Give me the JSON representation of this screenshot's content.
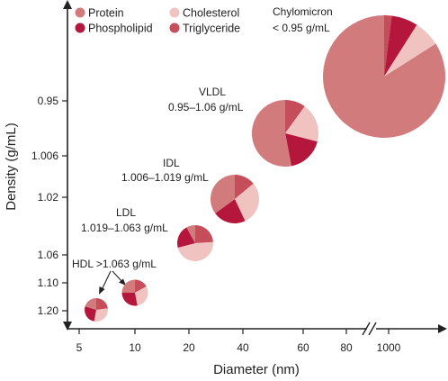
{
  "chart_data": {
    "type": "scatter",
    "subtype": "bubble-pie",
    "xlabel": "Diameter (nm)",
    "ylabel": "Density (g/mL)",
    "x_axis": {
      "scale": "log",
      "ticks": [
        "5",
        "10",
        "20",
        "40",
        "60",
        "80",
        "1000"
      ],
      "break_between": [
        "80",
        "1000"
      ]
    },
    "y_axis": {
      "direction": "increasing-density-downward",
      "ticks": [
        "0.95",
        "1.006",
        "1.02",
        "1.06",
        "1.10",
        "1.20"
      ]
    },
    "grid": false,
    "legend_position": "top-left",
    "legend": [
      {
        "key": "protein",
        "label": "Protein",
        "color": "#d27b7d"
      },
      {
        "key": "phospholipid",
        "label": "Phospholipid",
        "color": "#b5163c"
      },
      {
        "key": "cholesterol",
        "label": "Cholesterol",
        "color": "#f0c3c1"
      },
      {
        "key": "triglyceride",
        "label": "Triglyceride",
        "color": "#c64d5a"
      }
    ],
    "particles": [
      {
        "name": "Chylomicron",
        "label": "Chylomicron",
        "density_label": "< 0.95 g/mL",
        "diameter_nm": 1000,
        "composition_pct": {
          "triglyceride": 2,
          "phospholipid": 7,
          "cholesterol": 7,
          "protein": 84
        }
      },
      {
        "name": "VLDL",
        "label": "VLDL",
        "density_label": "0.95–1.06  g/mL",
        "diameter_nm": 50,
        "composition_pct": {
          "triglyceride": 10,
          "cholesterol": 19,
          "phospholipid": 18,
          "protein": 53
        }
      },
      {
        "name": "IDL",
        "label": "IDL",
        "density_label": "1.006–1.019  g/mL",
        "diameter_nm": 35,
        "composition_pct": {
          "triglyceride": 14,
          "cholesterol": 29,
          "phospholipid": 22,
          "protein": 35
        }
      },
      {
        "name": "LDL",
        "label": "LDL",
        "density_label": "1.019–1.063  g/mL",
        "diameter_nm": 22,
        "composition_pct": {
          "triglyceride": 24,
          "cholesterol": 47,
          "phospholipid": 21,
          "protein": 8
        }
      },
      {
        "name": "HDL-large",
        "label": "",
        "density_label": "",
        "diameter_nm": 10,
        "composition_pct": {
          "triglyceride": 17,
          "cholesterol": 30,
          "phospholipid": 28,
          "protein": 25
        }
      },
      {
        "name": "HDL-small",
        "label": "",
        "density_label": "",
        "diameter_nm": 6,
        "composition_pct": {
          "triglyceride": 23,
          "cholesterol": 30,
          "phospholipid": 27,
          "protein": 20
        }
      }
    ],
    "annotations": [
      {
        "text": "HDL >1.063 g/mL",
        "points_to": [
          "HDL-small",
          "HDL-large"
        ]
      }
    ]
  }
}
